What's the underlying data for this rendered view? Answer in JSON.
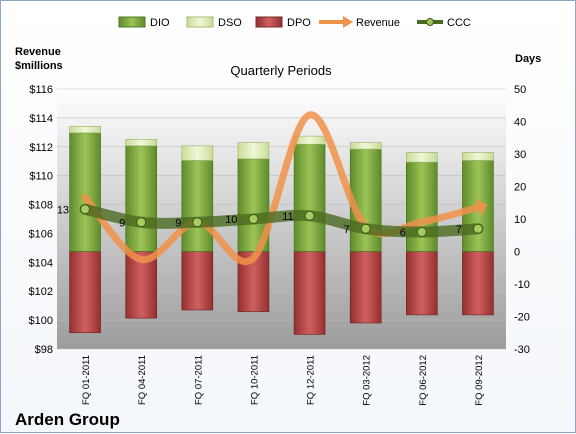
{
  "company": "Arden Group",
  "chart_data": {
    "type": "bar",
    "title": "Quarterly Periods",
    "left_axis_label_line1": "Revenue",
    "left_axis_label_line2": "$millions",
    "right_axis_label": "Days",
    "left_ylim": [
      98,
      116
    ],
    "left_ticks": [
      "$98",
      "$100",
      "$102",
      "$104",
      "$106",
      "$108",
      "$110",
      "$112",
      "$114",
      "$116"
    ],
    "right_ylim": [
      -30,
      50
    ],
    "right_ticks": [
      "-30",
      "-20",
      "-10",
      "0",
      "10",
      "20",
      "30",
      "40",
      "50"
    ],
    "categories": [
      "FQ 01-2011",
      "FQ 04-2011",
      "FQ 07-2011",
      "FQ 10-2011",
      "FQ 12-2011",
      "FQ 03-2012",
      "FQ 06-2012",
      "FQ 09-2012"
    ],
    "legend": [
      "DIO",
      "DSO",
      "DPO",
      "Revenue",
      "CCC"
    ],
    "series": [
      {
        "name": "DIO",
        "axis": "right",
        "values": [
          36.5,
          32.5,
          28,
          28.5,
          33,
          31.5,
          27.5,
          28
        ],
        "color": "#7ca640"
      },
      {
        "name": "DSO",
        "axis": "right",
        "values": [
          2,
          2,
          4.5,
          5,
          2.5,
          2,
          3,
          2.5
        ],
        "color": "#d8e8b0"
      },
      {
        "name": "DPO",
        "axis": "right",
        "values": [
          -25,
          -20.5,
          -18,
          -18.5,
          -25.5,
          -22,
          -19.5,
          -19.5
        ],
        "color": "#b84a4a"
      },
      {
        "name": "Revenue",
        "axis": "left",
        "values": [
          108.5,
          104.2,
          106.8,
          104.3,
          114.2,
          106.5,
          106.8,
          107.8
        ],
        "color": "#f0924a"
      },
      {
        "name": "CCC",
        "axis": "right",
        "values": [
          13,
          9,
          9,
          10,
          11,
          7,
          6,
          7
        ],
        "labels": [
          "13",
          "9",
          "9",
          "10",
          "11",
          "7",
          "6",
          "7"
        ],
        "color": "#4a6a20"
      }
    ]
  }
}
